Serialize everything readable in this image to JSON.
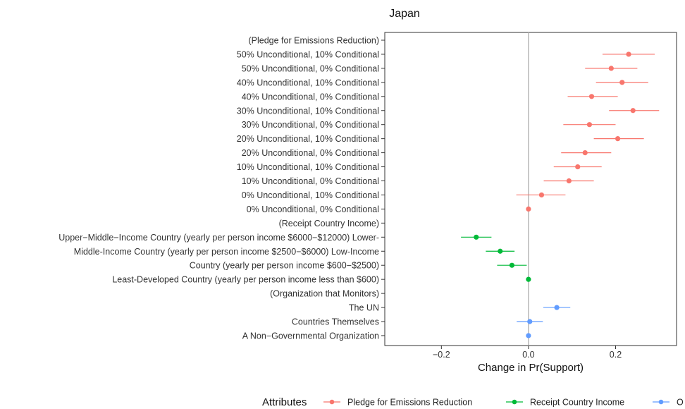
{
  "chart_data": {
    "type": "scatter",
    "title": "Japan",
    "xlabel": "Change in Pr(Support)",
    "ylabel": "",
    "xlim": [
      -0.33,
      0.34
    ],
    "xticks": [
      -0.2,
      0.0,
      0.2
    ],
    "xtick_labels": [
      "−0.2",
      "0.0",
      "0.2"
    ],
    "grid": false,
    "reference_line": 0,
    "legend": {
      "title": "Attributes",
      "position": "bottom",
      "entries": [
        "Pledge for Emissions Reduction",
        "Receipt Country Income",
        "O"
      ]
    },
    "series_colors": {
      "pledge": "#F8766D",
      "income": "#00BA38",
      "org": "#619CFF"
    },
    "rows": [
      {
        "label": "(Pledge for Emissions Reduction)",
        "series": null
      },
      {
        "label": "50%  Unconditional,  10%  Conditional",
        "series": "pledge",
        "est": 0.23,
        "lo": 0.17,
        "hi": 0.29
      },
      {
        "label": "50%  Unconditional,  0%  Conditional",
        "series": "pledge",
        "est": 0.19,
        "lo": 0.13,
        "hi": 0.25
      },
      {
        "label": "40%  Unconditional,  10%  Conditional",
        "series": "pledge",
        "est": 0.215,
        "lo": 0.155,
        "hi": 0.275
      },
      {
        "label": "40%  Unconditional,  0%  Conditional",
        "series": "pledge",
        "est": 0.145,
        "lo": 0.09,
        "hi": 0.205
      },
      {
        "label": "30%  Unconditional,  10%  Conditional",
        "series": "pledge",
        "est": 0.24,
        "lo": 0.185,
        "hi": 0.3
      },
      {
        "label": "30%  Unconditional,  0%  Conditional",
        "series": "pledge",
        "est": 0.14,
        "lo": 0.08,
        "hi": 0.2
      },
      {
        "label": "20%  Unconditional,  10%  Conditional",
        "series": "pledge",
        "est": 0.205,
        "lo": 0.15,
        "hi": 0.265
      },
      {
        "label": "20%  Unconditional,  0%  Conditional",
        "series": "pledge",
        "est": 0.13,
        "lo": 0.075,
        "hi": 0.19
      },
      {
        "label": "10%  Unconditional,  10%  Conditional",
        "series": "pledge",
        "est": 0.113,
        "lo": 0.058,
        "hi": 0.168
      },
      {
        "label": "10%  Unconditional,  0%  Conditional",
        "series": "pledge",
        "est": 0.093,
        "lo": 0.035,
        "hi": 0.15
      },
      {
        "label": "0%  Unconditional,  10%  Conditional",
        "series": "pledge",
        "est": 0.03,
        "lo": -0.028,
        "hi": 0.085
      },
      {
        "label": "0%  Unconditional,  0%  Conditional",
        "series": "pledge",
        "est": 0.0
      },
      {
        "label": "(Receipt  Country  Income)",
        "series": null
      },
      {
        "label": "Upper−Middle−Income Country (yearly per person income $6000−$12000)  Lower-",
        "series": "income",
        "est": -0.12,
        "lo": -0.155,
        "hi": -0.085
      },
      {
        "label": "Middle-Income Country (yearly per person income $2500−$6000)  Low-Income",
        "series": "income",
        "est": -0.065,
        "lo": -0.098,
        "hi": -0.032
      },
      {
        "label": "Country (yearly per person income $600−$2500)",
        "series": "income",
        "est": -0.038,
        "lo": -0.072,
        "hi": -0.004
      },
      {
        "label": "Least-Developed Country (yearly per person income less than $600)",
        "series": "income",
        "est": 0.0
      },
      {
        "label": "(Organization  that  Monitors)",
        "series": null
      },
      {
        "label": "The  UN",
        "series": "org",
        "est": 0.065,
        "lo": 0.034,
        "hi": 0.096
      },
      {
        "label": "Countries  Themselves",
        "series": "org",
        "est": 0.003,
        "lo": -0.027,
        "hi": 0.033
      },
      {
        "label": "A  Non−Governmental  Organization",
        "series": "org",
        "est": 0.0
      }
    ]
  }
}
